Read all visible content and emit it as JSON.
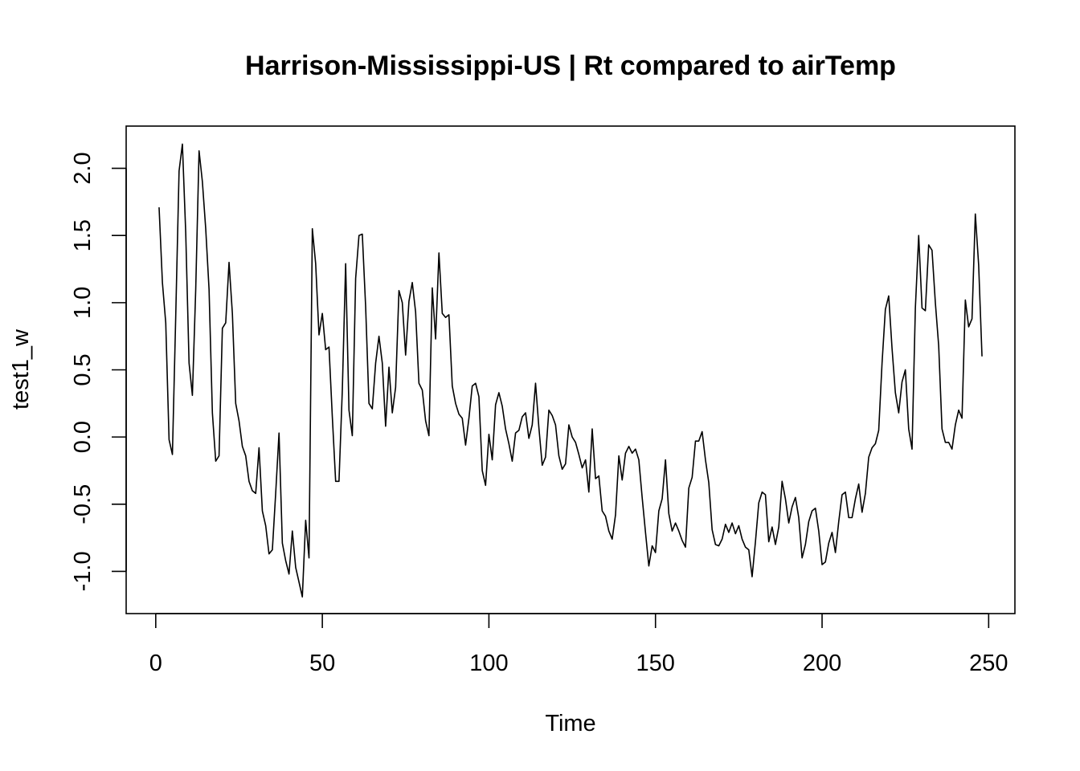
{
  "chart_data": {
    "type": "line",
    "title": "Harrison-Mississippi-US | Rt compared to airTemp",
    "xlabel": "Time",
    "ylabel": "test1_w",
    "xlim": [
      1,
      248
    ],
    "ylim": [
      -1.18,
      2.18
    ],
    "xticks": [
      0,
      50,
      100,
      150,
      200,
      250
    ],
    "yticks": [
      -1.0,
      -0.5,
      0.0,
      0.5,
      1.0,
      1.5,
      2.0
    ],
    "xtick_labels": [
      "0",
      "50",
      "100",
      "150",
      "200",
      "250"
    ],
    "ytick_labels": [
      "-1.0",
      "-0.5",
      "0.0",
      "0.5",
      "1.0",
      "1.5",
      "2.0"
    ],
    "grid": false,
    "legend": "none",
    "line_color": "#000000",
    "series": [
      {
        "x_start": 1,
        "values": [
          1.71,
          1.15,
          0.85,
          -0.02,
          -0.13,
          0.9,
          1.98,
          2.18,
          1.52,
          0.55,
          0.31,
          1.1,
          2.13,
          1.9,
          1.55,
          1.1,
          0.18,
          -0.18,
          -0.14,
          0.81,
          0.85,
          1.3,
          0.92,
          0.25,
          0.12,
          -0.07,
          -0.14,
          -0.33,
          -0.4,
          -0.42,
          -0.08,
          -0.55,
          -0.66,
          -0.87,
          -0.84,
          -0.42,
          0.03,
          -0.79,
          -0.92,
          -1.02,
          -0.7,
          -0.97,
          -1.08,
          -1.19,
          -0.62,
          -0.9,
          1.55,
          1.29,
          0.76,
          0.92,
          0.65,
          0.67,
          0.15,
          -0.33,
          -0.33,
          0.35,
          1.29,
          0.2,
          0.01,
          1.18,
          1.5,
          1.51,
          0.97,
          0.25,
          0.21,
          0.55,
          0.75,
          0.55,
          0.08,
          0.52,
          0.18,
          0.37,
          1.09,
          1.0,
          0.61,
          1.01,
          1.15,
          0.93,
          0.4,
          0.35,
          0.12,
          0.01,
          1.11,
          0.73,
          1.37,
          0.92,
          0.89,
          0.91,
          0.38,
          0.25,
          0.17,
          0.14,
          -0.06,
          0.14,
          0.38,
          0.4,
          0.3,
          -0.25,
          -0.36,
          0.02,
          -0.17,
          0.24,
          0.33,
          0.23,
          0.06,
          -0.05,
          -0.18,
          0.03,
          0.05,
          0.15,
          0.18,
          -0.01,
          0.09,
          0.4,
          0.07,
          -0.21,
          -0.15,
          0.2,
          0.16,
          0.09,
          -0.14,
          -0.24,
          -0.2,
          0.09,
          0.0,
          -0.04,
          -0.13,
          -0.23,
          -0.17,
          -0.41,
          0.06,
          -0.31,
          -0.29,
          -0.55,
          -0.59,
          -0.7,
          -0.76,
          -0.58,
          -0.14,
          -0.32,
          -0.12,
          -0.07,
          -0.12,
          -0.09,
          -0.17,
          -0.45,
          -0.71,
          -0.96,
          -0.81,
          -0.86,
          -0.55,
          -0.46,
          -0.17,
          -0.57,
          -0.7,
          -0.64,
          -0.7,
          -0.77,
          -0.82,
          -0.38,
          -0.3,
          -0.03,
          -0.03,
          0.04,
          -0.17,
          -0.34,
          -0.69,
          -0.8,
          -0.81,
          -0.76,
          -0.65,
          -0.71,
          -0.64,
          -0.72,
          -0.66,
          -0.76,
          -0.82,
          -0.84,
          -1.04,
          -0.78,
          -0.49,
          -0.41,
          -0.43,
          -0.78,
          -0.67,
          -0.8,
          -0.67,
          -0.33,
          -0.46,
          -0.64,
          -0.52,
          -0.45,
          -0.6,
          -0.9,
          -0.8,
          -0.63,
          -0.55,
          -0.53,
          -0.7,
          -0.95,
          -0.93,
          -0.79,
          -0.71,
          -0.86,
          -0.63,
          -0.43,
          -0.41,
          -0.6,
          -0.6,
          -0.46,
          -0.35,
          -0.56,
          -0.42,
          -0.15,
          -0.08,
          -0.05,
          0.05,
          0.55,
          0.95,
          1.05,
          0.66,
          0.33,
          0.18,
          0.41,
          0.5,
          0.06,
          -0.09,
          0.96,
          1.5,
          0.96,
          0.94,
          1.43,
          1.39,
          1.0,
          0.68,
          0.06,
          -0.04,
          -0.04,
          -0.09,
          0.09,
          0.2,
          0.14,
          1.02,
          0.82,
          0.88,
          1.66,
          1.28,
          0.6
        ]
      }
    ]
  }
}
